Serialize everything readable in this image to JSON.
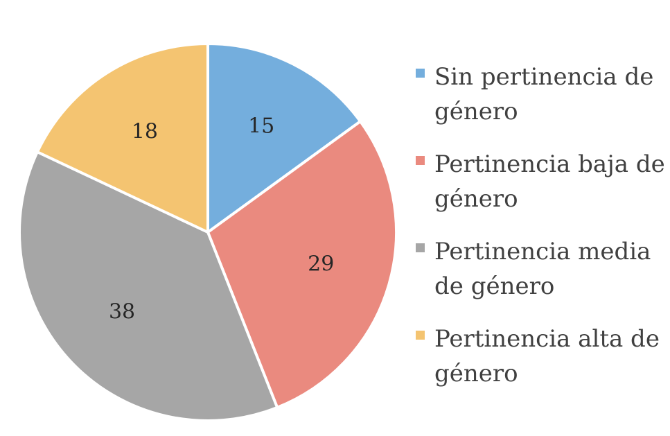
{
  "chart_data": {
    "type": "pie",
    "categories": [
      "Sin pertinencia de género",
      "Pertinencia baja de género",
      "Pertinencia media de género",
      "Pertinencia alta de género"
    ],
    "values": [
      15,
      29,
      38,
      18
    ],
    "data_labels": [
      "15",
      "29",
      "38",
      "18"
    ],
    "colors": [
      "#74aedd",
      "#ea8a7f",
      "#a6a6a6",
      "#f4c471"
    ],
    "legend_position": "right",
    "start_angle": "12 o'clock",
    "direction": "clockwise"
  },
  "legend": {
    "items": [
      {
        "label": "Sin pertinencia de género",
        "color": "#74aedd"
      },
      {
        "label": "Pertinencia baja de género",
        "color": "#ea8a7f"
      },
      {
        "label": "Pertinencia media de género",
        "color": "#a6a6a6"
      },
      {
        "label": "Pertinencia alta de género",
        "color": "#f4c471"
      }
    ]
  }
}
